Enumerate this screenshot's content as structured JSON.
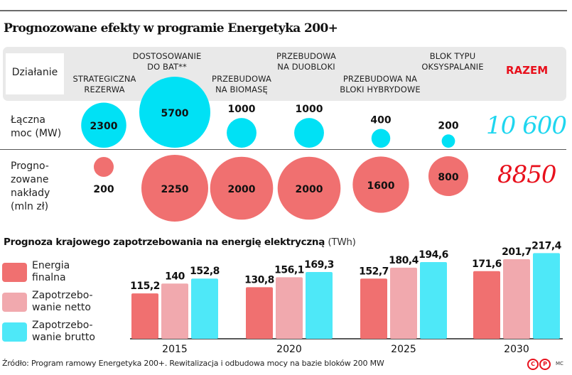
{
  "title": "Prognozowane efekty w programie Energetyka 200+",
  "header": {
    "dzialanie_label": "Działanie",
    "razem_label": "RAZEM",
    "categories": [
      {
        "line1": "STRATEGICZNA",
        "line2": "REZERWA"
      },
      {
        "line1": "DOSTOSOWANIE",
        "line2": "DO BAT**"
      },
      {
        "line1": "PRZEBUDOWA",
        "line2": "NA BIOMASĘ"
      },
      {
        "line1": "PRZEBUDOWA",
        "line2": "NA DUOBLOKI"
      },
      {
        "line1": "PRZEBUDOWA NA",
        "line2": "BLOKI HYBRYDOWE"
      },
      {
        "line1": "BLOK TYPU",
        "line2": "OKSYSPALANIE"
      }
    ]
  },
  "rows": {
    "moc": {
      "label_line1": "Łączna",
      "label_line2": "moc (MW)",
      "total": "10 600"
    },
    "naklady": {
      "label_line1": "Progno-",
      "label_line2": "zowane",
      "label_line3": "nakłady",
      "label_line4": "(mln zł)",
      "total": "8850"
    }
  },
  "colors": {
    "cyan": "#00e1f5",
    "red_bubble": "#f07070",
    "bar_final": "#f07070",
    "bar_netto": "#f1a9ae",
    "bar_brutto": "#4ee8f8",
    "total_cyan": "#1fd6ef",
    "total_red": "#e8101c"
  },
  "chart_data": [
    {
      "type": "scatter",
      "title": "Prognozowane efekty w programie Energetyka 200+",
      "subtype": "bubble",
      "categories": [
        "STRATEGICZNA REZERWA",
        "DOSTOSOWANIE DO BAT**",
        "PRZEBUDOWA NA BIOMASĘ",
        "PRZEBUDOWA NA DUOBLOKI",
        "PRZEBUDOWA NA BLOKI HYBRYDOWE",
        "BLOK TYPU OKSYSPALANIE"
      ],
      "series": [
        {
          "name": "Łączna moc (MW)",
          "values": [
            2300,
            5700,
            1000,
            1000,
            400,
            200
          ],
          "labels": [
            "2300",
            "5700",
            "1000",
            "1000",
            "400",
            "200"
          ],
          "total": 10600
        },
        {
          "name": "Prognozowane nakłady (mln zł)",
          "values": [
            200,
            2250,
            2000,
            2000,
            1600,
            800
          ],
          "labels": [
            "200",
            "2250",
            "2000",
            "2000",
            "1600",
            "800"
          ],
          "total": 8850
        }
      ]
    },
    {
      "type": "bar",
      "title": "Prognoza krajowego zapotrzebowania na energię elektryczną",
      "unit": "(TWh)",
      "categories": [
        "2015",
        "2020",
        "2025",
        "2030"
      ],
      "series": [
        {
          "name": "Energia finalna",
          "legend_line1": "Energia",
          "legend_line2": "finalna",
          "values": [
            115.2,
            130.8,
            152.7,
            171.6
          ],
          "labels": [
            "115,2",
            "130,8",
            "152,7",
            "171,6"
          ]
        },
        {
          "name": "Zapotrzebowanie netto",
          "legend_line1": "Zapotrzebo-",
          "legend_line2": "wanie netto",
          "values": [
            140,
            156.1,
            180.4,
            201.7
          ],
          "labels": [
            "140",
            "156,1",
            "180,4",
            "201,7"
          ]
        },
        {
          "name": "Zapotrzebowanie brutto",
          "legend_line1": "Zapotrzebo-",
          "legend_line2": "wanie brutto",
          "values": [
            152.8,
            169.3,
            194.6,
            217.4
          ],
          "labels": [
            "152,8",
            "169,3",
            "194,6",
            "217,4"
          ]
        }
      ],
      "xlabel": "",
      "ylabel": "",
      "ylim": [
        0,
        220
      ],
      "grid": false,
      "legend": "left"
    }
  ],
  "footer": {
    "source": "Źródło: Program ramowy Energetyka 200+. Rewitalizacja i odbudowa mocy na bazie bloków 200 MW",
    "copyright_c": "C",
    "copyright_p": "P",
    "author": "MC"
  }
}
